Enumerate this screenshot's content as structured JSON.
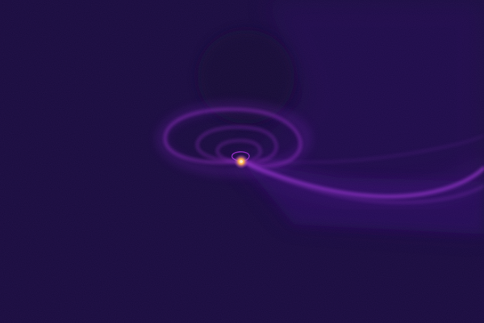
{
  "image": {
    "kind": "fractal-flame-render",
    "palette": {
      "background": "#190c3e",
      "dark_region": "#160a34",
      "haze": "#2a1060",
      "spiral_stroke": "#9a2fc8",
      "spiral_glow": "#6a1aa8",
      "tail": "#a83ae0",
      "core": "#ffb347",
      "core_hot": "#fff0c0"
    }
  }
}
